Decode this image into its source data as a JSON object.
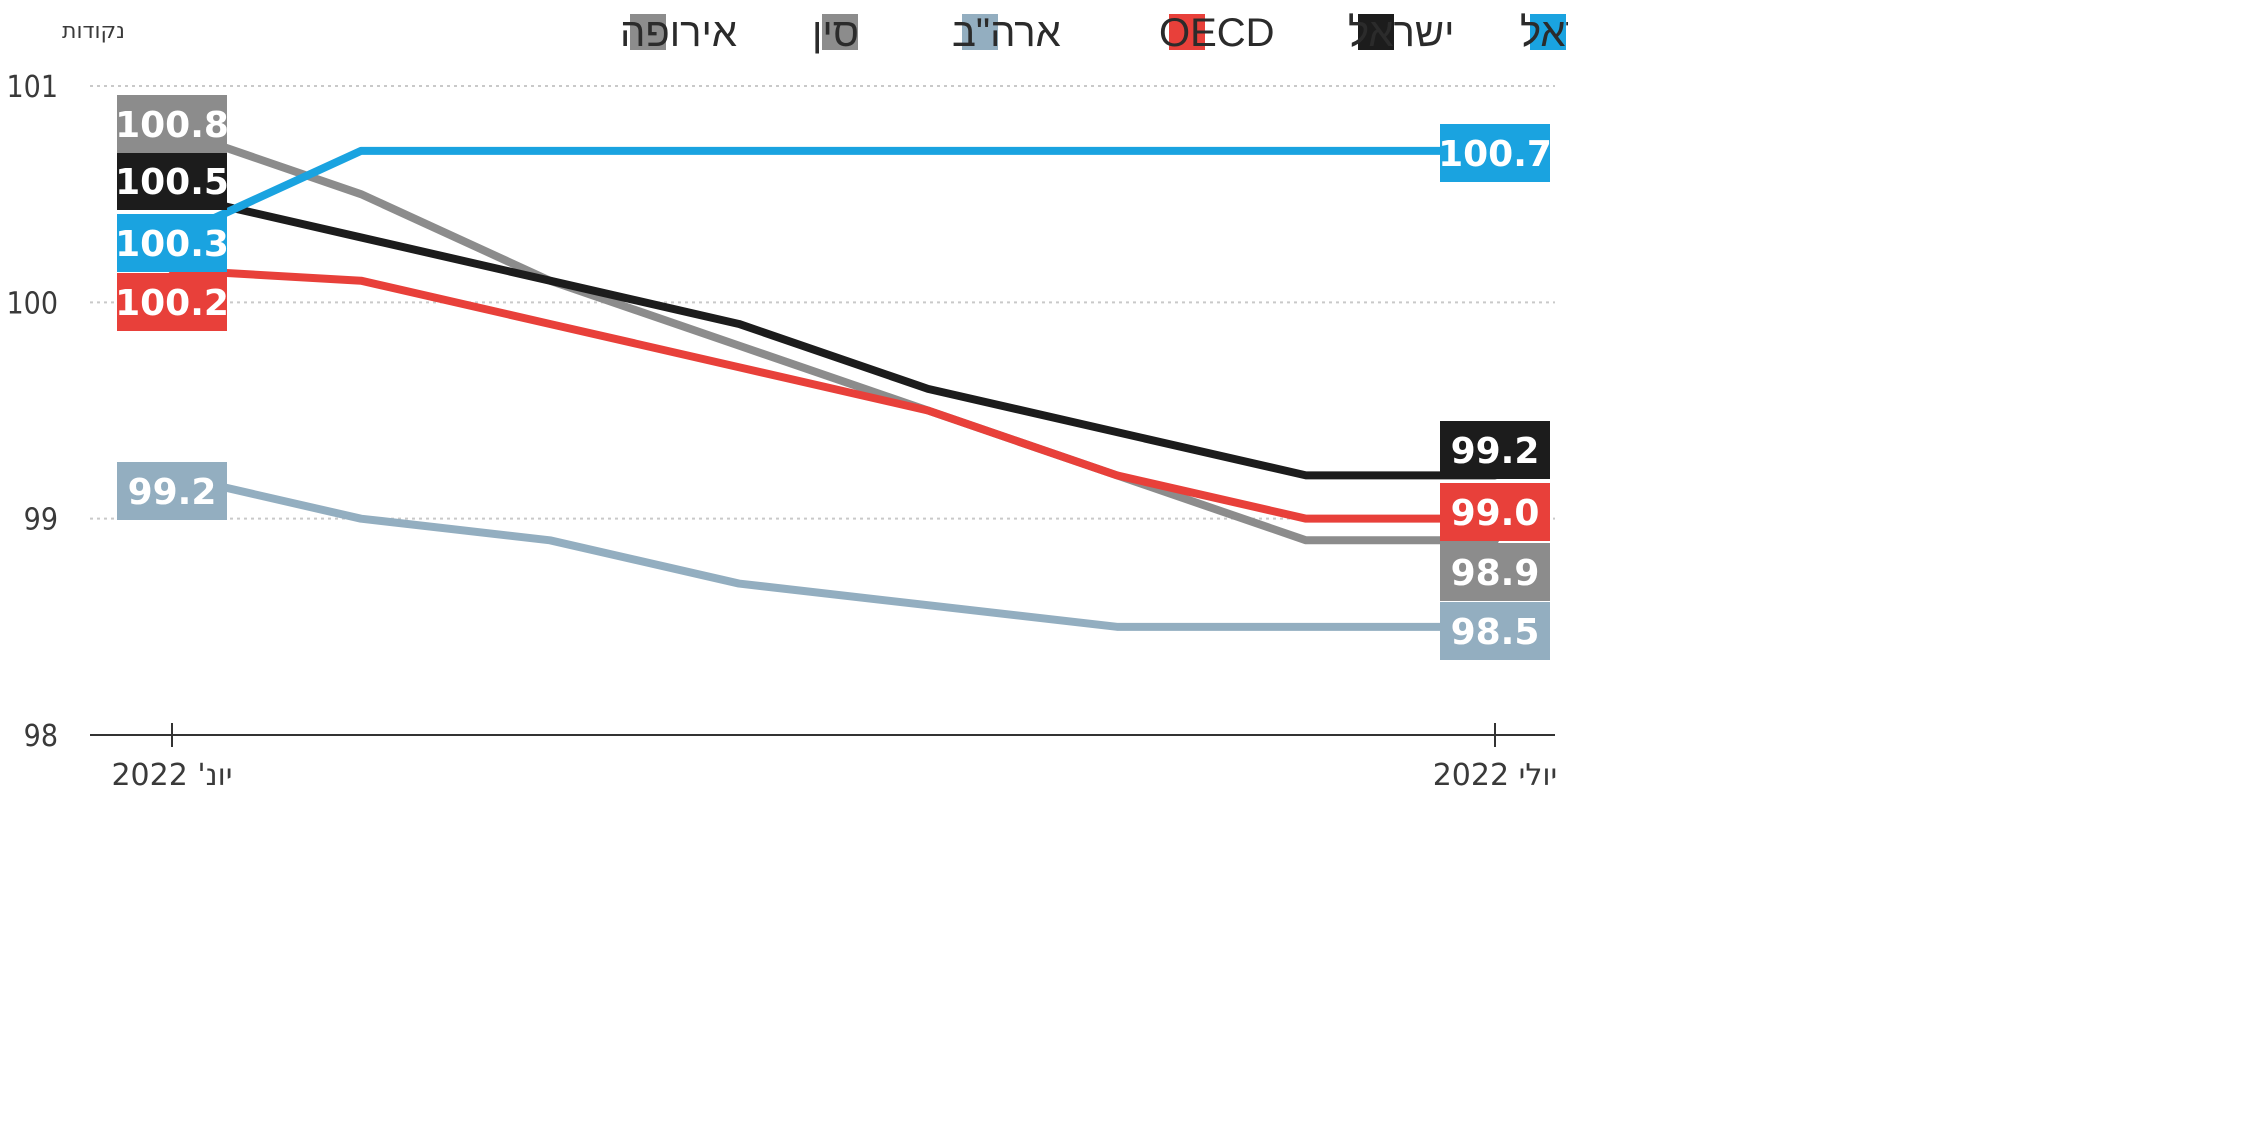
{
  "chart_data": {
    "type": "line",
    "ylabel": "נקודות",
    "ylim": [
      98,
      101
    ],
    "yticks": [
      "98",
      "99",
      "100",
      "101"
    ],
    "grid": true,
    "legend_position": "top-right",
    "x_end_labels": [
      "יונ' 2022",
      "יולי 2022"
    ],
    "series": [
      {
        "name": "ישראל",
        "color": "#1aa3e0",
        "values": [
          100.3,
          100.7,
          100.7,
          100.7,
          100.7,
          100.7,
          100.7,
          100.7
        ],
        "start_label": "100.3",
        "end_label": "100.7"
      },
      {
        "name": "ישראל",
        "color": "#1c1c1c",
        "values": [
          100.5,
          100.3,
          100.1,
          99.9,
          99.6,
          99.4,
          99.2,
          99.2
        ],
        "start_label": "100.5",
        "end_label": "99.2"
      },
      {
        "name": "OECD",
        "color": "#e8403a",
        "values": [
          100.15,
          100.1,
          99.9,
          99.7,
          99.5,
          99.2,
          99.0,
          99.0
        ],
        "start_label": "100.2",
        "end_label": "99.0"
      },
      {
        "name": "ארה\"ב",
        "color": "#93aec0",
        "values": [
          99.2,
          99.0,
          98.9,
          98.7,
          98.6,
          98.5,
          98.5,
          98.5
        ],
        "start_label": "99.2",
        "end_label": "98.5"
      },
      {
        "name": "סין",
        "color": "#8c8c8c",
        "values": [
          100.8,
          100.5,
          100.1,
          99.8,
          99.5,
          99.2,
          98.9,
          98.9
        ],
        "start_label": "100.8",
        "end_label": "98.9"
      }
    ],
    "legend": [
      {
        "label": "ישראל",
        "color": "#1aa3e0"
      },
      {
        "label": "ישראל",
        "color": "#1c1c1c"
      },
      {
        "label": "OECD",
        "color": "#e8403a"
      },
      {
        "label": "ארה\"ב",
        "color": "#93aec0"
      },
      {
        "label": "סין",
        "color": "#8c8c8c"
      },
      {
        "label": "אירופה",
        "color": "#8c8c8c"
      }
    ]
  }
}
